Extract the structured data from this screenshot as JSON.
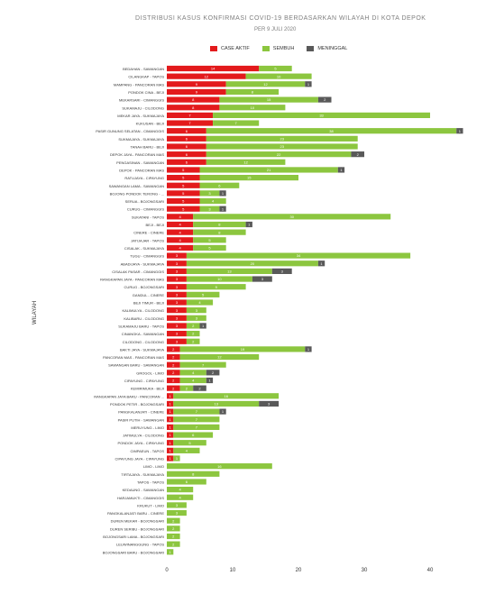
{
  "chart_data": {
    "type": "bar",
    "stacked": true,
    "orientation": "horizontal",
    "title": "DISTRIBUSI KASUS KONFIRMASI COVID-19 BERDASARKAN WILAYAH DI KOTA DEPOK",
    "subtitle": "PER 9 JULI 2020",
    "ylabel": "WILAYAH",
    "xlabel": "",
    "xlim": [
      0,
      45
    ],
    "xticks": [
      0,
      10,
      20,
      30,
      40
    ],
    "grid": false,
    "legend_position": "top",
    "categories": [
      "BEDAHAN - SAWANGAN",
      "CILANGKAP - TAPOS",
      "MAMPANG - PANCORAN MAS",
      "PONDOK CINA - BEJI",
      "MEKARSARI - CIMANGGIS",
      "SUKAMAJU - CILODONG",
      "MEKAR JAYA - SUKMAJAYA",
      "KUKUSAN - BEJI",
      "PASIR GUNUNG SELATAN - CIMANGGIS",
      "SUKMAJAYA - SUKMAJAYA",
      "TANAH BARU - BEJI",
      "DEPOK JAYA - PANCORAN MAS",
      "PENGASINAN - SAWANGAN",
      "DEPOK - PANCORAN MAS",
      "RATUJAYA - CIPAYUNG",
      "SAWANGAN LAMA - SAWANGAN",
      "BOJONG PONDOK TERONG - ...",
      "SERUA - BOJONGSARI",
      "CURUG - CIMANGGIS",
      "SUKATANI - TAPOS",
      "BEJI - BEJI",
      "CINERE - CINERE",
      "JATIJAJAR - TAPOS",
      "CISALAK - SUKMAJAYA",
      "TUGU - CIMANGGIS",
      "ABADIJAYA - SUKMAJAYA",
      "CISALAK PASAR - CIMANGGIS",
      "RANGKAPAN JAYA - PANCORAN MAS",
      "CURUG - BOJONGSARI",
      "GANDUL - CINERE",
      "BEJI TIMUR - BEJI",
      "KALIMULYA - CILODONG",
      "KALIBARU - CILODONG",
      "SUKAMAJU BARU - TAPOS",
      "CINANGKA - SAWANGAN",
      "CILODONG - CILODONG",
      "BAKTI JAYA - SUKMAJAYA",
      "PANCORAN MAS - PANCORAN MAS",
      "SAWANGAN BARU - SAWANGAN",
      "GROGOL - LIMO",
      "CIPAYUNG - CIPAYUNG",
      "KEMIRIMUKA - BEJI",
      "RANGKAPAN JAYA BARU - PANCORAN ...",
      "PONDOK PETIR - BOJONGSARI",
      "PANGKALANJATI - CINERE",
      "PASIR PUTIH - SAWANGAN",
      "MERUYUNG - LIMO",
      "JATIMULYA - CILODONG",
      "PONDOK JAYA - CIPAYUNG",
      "CIMPAEUN - TAPOS",
      "CIPAYUNG JAYA - CIPAYUNG",
      "LIMO - LIMO",
      "TIRTAJAYA - SUKMAJAYA",
      "TAPOS - TAPOS",
      "KEDAUNG - SAWANGAN",
      "HARJAMUKTI - CIMANGGIS",
      "KRUKUT - LIMO",
      "PANGKALANJATI BARU - CINERE",
      "DUREN MEKAR - BOJONGSARI",
      "DUREN SERIBU - BOJONGSARI",
      "BOJONGSARI LAMA - BOJONGSARI",
      "LEUWINANGGUNG - TAPOS",
      "BOJONGSARI BARU - BOJONGSARI"
    ],
    "series": [
      {
        "name": "CASE AKTIF",
        "color": "#e31a1c",
        "values": [
          14,
          12,
          9,
          9,
          8,
          8,
          7,
          7,
          6,
          6,
          6,
          6,
          6,
          5,
          5,
          5,
          5,
          5,
          5,
          4,
          4,
          4,
          4,
          4,
          3,
          3,
          3,
          3,
          3,
          3,
          3,
          3,
          3,
          3,
          3,
          3,
          2,
          2,
          2,
          2,
          2,
          2,
          1,
          1,
          1,
          1,
          1,
          1,
          1,
          1,
          1,
          0,
          0,
          0,
          0,
          0,
          0,
          0,
          0,
          0,
          0,
          0,
          0
        ]
      },
      {
        "name": "SEMBUH",
        "color": "#8cc63f",
        "values": [
          5,
          10,
          12,
          8,
          15,
          10,
          33,
          7,
          38,
          23,
          23,
          22,
          12,
          21,
          15,
          6,
          3,
          4,
          3,
          30,
          8,
          8,
          5,
          5,
          34,
          20,
          13,
          10,
          9,
          5,
          4,
          3,
          3,
          2,
          2,
          2,
          19,
          12,
          7,
          4,
          4,
          2,
          16,
          13,
          7,
          7,
          7,
          6,
          5,
          4,
          1,
          16,
          8,
          6,
          4,
          4,
          3,
          3,
          2,
          2,
          2,
          2,
          1
        ]
      },
      {
        "name": "MENINGGAL",
        "color": "#595959",
        "values": [
          0,
          0,
          1,
          0,
          2,
          0,
          0,
          0,
          1,
          0,
          0,
          2,
          0,
          1,
          0,
          0,
          1,
          0,
          1,
          0,
          1,
          0,
          0,
          0,
          0,
          1,
          3,
          3,
          0,
          0,
          0,
          0,
          0,
          1,
          0,
          0,
          1,
          0,
          0,
          2,
          1,
          2,
          0,
          3,
          1,
          0,
          0,
          0,
          0,
          0,
          0,
          0,
          0,
          0,
          0,
          0,
          0,
          0,
          0,
          0,
          0,
          0,
          0
        ]
      }
    ]
  }
}
